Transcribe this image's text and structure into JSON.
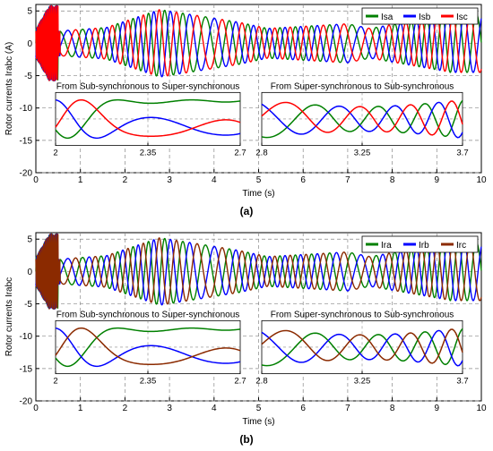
{
  "chart_data": [
    {
      "type": "line",
      "panel_label": "(a)",
      "ylabel": "Rotor currents Irabc (A)",
      "xlabel": "Time (s)",
      "xlim": [
        0,
        10
      ],
      "ylim": [
        -20,
        6
      ],
      "x_ticks": [
        "0",
        "1",
        "2",
        "3",
        "4",
        "5",
        "6",
        "7",
        "8",
        "9",
        "10"
      ],
      "y_ticks": [
        "5",
        "0",
        "-5",
        "-10",
        "-15",
        "-20"
      ],
      "grid": true,
      "legend_position": "top-right",
      "series": [
        {
          "name": "Isa",
          "color": "#008000"
        },
        {
          "name": "Isb",
          "color": "#0000ff"
        },
        {
          "name": "Isc",
          "color": "#ff0000"
        }
      ],
      "inset_left": {
        "title": "From Sub-synchronous to Super-synchronous",
        "xlim": [
          2,
          2.7
        ],
        "x_ticks": [
          "2",
          "2.35",
          "2.7"
        ]
      },
      "inset_right": {
        "title": "From Super-synchronous to Sub-synchronous",
        "xlim": [
          2.8,
          3.7
        ],
        "x_ticks": [
          "2.8",
          "3.25",
          "3.7"
        ]
      }
    },
    {
      "type": "line",
      "panel_label": "(b)",
      "ylabel": "Rotor currents Irabc",
      "xlabel": "Time (s)",
      "xlim": [
        0,
        10
      ],
      "ylim": [
        -20,
        6
      ],
      "x_ticks": [
        "0",
        "1",
        "2",
        "3",
        "4",
        "5",
        "6",
        "7",
        "8",
        "9",
        "10"
      ],
      "y_ticks": [
        "5",
        "0",
        "-5",
        "-10",
        "-15",
        "-20"
      ],
      "grid": true,
      "legend_position": "top-right",
      "series": [
        {
          "name": "Ira",
          "color": "#008000"
        },
        {
          "name": "Irb",
          "color": "#0000ff"
        },
        {
          "name": "Irc",
          "color": "#8b2a00"
        }
      ],
      "inset_left": {
        "title": "From Sub-synchronous to Super-synchronous",
        "xlim": [
          2,
          2.7
        ],
        "x_ticks": [
          "2",
          "2.35",
          "2.7"
        ]
      },
      "inset_right": {
        "title": "From Super-synchronous to Sub-synchronous",
        "xlim": [
          2.8,
          3.7
        ],
        "x_ticks": [
          "2.8",
          "3.25",
          "3.7"
        ]
      }
    }
  ]
}
